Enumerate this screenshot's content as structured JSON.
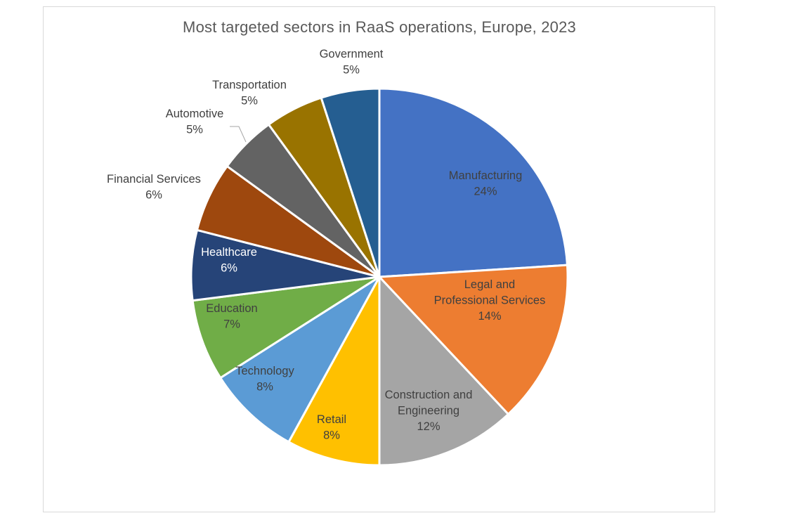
{
  "chart_data": {
    "type": "pie",
    "title": "Most targeted sectors in RaaS operations, Europe, 2023",
    "slices": [
      {
        "name_lines": [
          "Manufacturing"
        ],
        "value_label": "24%",
        "value": 24,
        "color": "#4472C4",
        "label_color": "#404040"
      },
      {
        "name_lines": [
          "Legal and",
          "Professional Services"
        ],
        "value_label": "14%",
        "value": 14,
        "color": "#ED7D31",
        "label_color": "#404040"
      },
      {
        "name_lines": [
          "Construction and",
          "Engineering"
        ],
        "value_label": "12%",
        "value": 12,
        "color": "#A5A5A5",
        "label_color": "#404040"
      },
      {
        "name_lines": [
          "Retail"
        ],
        "value_label": "8%",
        "value": 8,
        "color": "#FFC000",
        "label_color": "#404040"
      },
      {
        "name_lines": [
          "Technology"
        ],
        "value_label": "8%",
        "value": 8,
        "color": "#5B9BD5",
        "label_color": "#404040"
      },
      {
        "name_lines": [
          "Education"
        ],
        "value_label": "7%",
        "value": 7,
        "color": "#70AD47",
        "label_color": "#404040"
      },
      {
        "name_lines": [
          "Healthcare"
        ],
        "value_label": "6%",
        "value": 6,
        "color": "#264478",
        "label_color": "#ffffff"
      },
      {
        "name_lines": [
          "Financial Services"
        ],
        "value_label": "6%",
        "value": 6,
        "color": "#9E480E",
        "label_color": "#404040"
      },
      {
        "name_lines": [
          "Automotive"
        ],
        "value_label": "5%",
        "value": 5,
        "color": "#636363",
        "label_color": "#404040"
      },
      {
        "name_lines": [
          "Transportation"
        ],
        "value_label": "5%",
        "value": 5,
        "color": "#997300",
        "label_color": "#404040"
      },
      {
        "name_lines": [
          "Government"
        ],
        "value_label": "5%",
        "value": 5,
        "color": "#255E91",
        "label_color": "#404040"
      }
    ],
    "legend": "none",
    "data_labels": "category name and percentage"
  }
}
